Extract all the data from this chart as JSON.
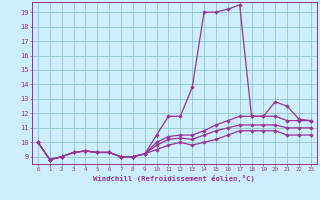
{
  "title": "",
  "xlabel": "Windchill (Refroidissement éolien,°C)",
  "ylabel": "",
  "bg_color": "#cceeff",
  "grid_color": "#99cccc",
  "line_color": "#993399",
  "marker_color": "#993399",
  "xlim": [
    -0.5,
    23.5
  ],
  "ylim": [
    8.5,
    19.7
  ],
  "xticks": [
    0,
    1,
    2,
    3,
    4,
    5,
    6,
    7,
    8,
    9,
    10,
    11,
    12,
    13,
    14,
    15,
    16,
    17,
    18,
    19,
    20,
    21,
    22,
    23
  ],
  "yticks": [
    9,
    10,
    11,
    12,
    13,
    14,
    15,
    16,
    17,
    18,
    19
  ],
  "series": [
    [
      10.0,
      8.8,
      9.0,
      9.3,
      9.4,
      9.3,
      9.3,
      9.0,
      9.0,
      9.2,
      10.5,
      11.8,
      11.8,
      13.8,
      19.0,
      19.0,
      19.2,
      19.5,
      11.8,
      11.8,
      12.8,
      12.5,
      11.6,
      11.5
    ],
    [
      10.0,
      8.8,
      9.0,
      9.3,
      9.4,
      9.3,
      9.3,
      9.0,
      9.0,
      9.2,
      10.0,
      10.4,
      10.5,
      10.5,
      10.8,
      11.2,
      11.5,
      11.8,
      11.8,
      11.8,
      11.8,
      11.5,
      11.5,
      11.5
    ],
    [
      10.0,
      8.8,
      9.0,
      9.3,
      9.4,
      9.3,
      9.3,
      9.0,
      9.0,
      9.2,
      9.8,
      10.2,
      10.3,
      10.2,
      10.5,
      10.8,
      11.0,
      11.2,
      11.2,
      11.2,
      11.2,
      11.0,
      11.0,
      11.0
    ],
    [
      10.0,
      8.8,
      9.0,
      9.3,
      9.4,
      9.3,
      9.3,
      9.0,
      9.0,
      9.2,
      9.5,
      9.8,
      10.0,
      9.8,
      10.0,
      10.2,
      10.5,
      10.8,
      10.8,
      10.8,
      10.8,
      10.5,
      10.5,
      10.5
    ]
  ]
}
